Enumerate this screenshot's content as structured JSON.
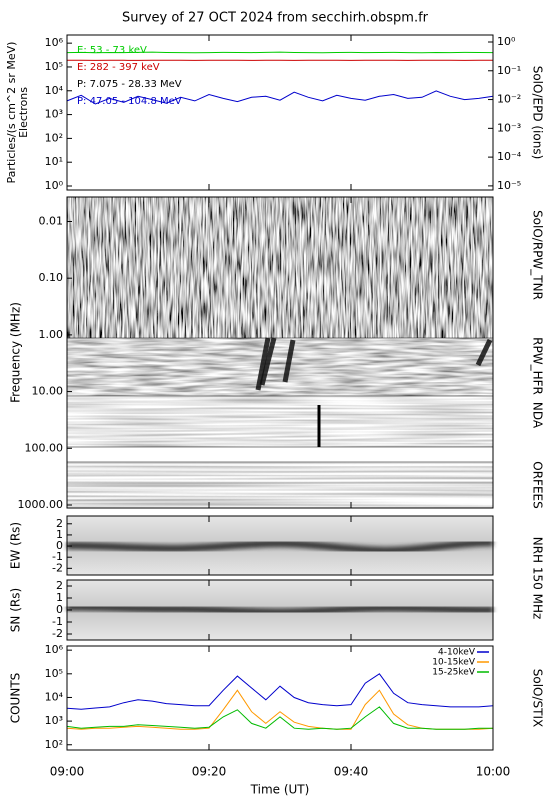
{
  "title": "Survey of 27 OCT 2024 from secchirh.obspm.fr",
  "chart_data": [
    {
      "type": "line",
      "ylabel": [
        "Particles/(s cm^2 sr MeV)",
        "Electrons"
      ],
      "right_label": "SolO/EPD (ions)",
      "log_y": true,
      "xlim": [
        "09:00",
        "10:00"
      ],
      "x": [
        "09:00",
        "09:02",
        "09:04",
        "09:06",
        "09:08",
        "09:10",
        "09:12",
        "09:14",
        "09:16",
        "09:18",
        "09:20",
        "09:22",
        "09:24",
        "09:26",
        "09:28",
        "09:30",
        "09:32",
        "09:34",
        "09:36",
        "09:38",
        "09:40",
        "09:42",
        "09:44",
        "09:46",
        "09:48",
        "09:50",
        "09:52",
        "09:54",
        "09:56",
        "09:58",
        "10:00"
      ],
      "ylim": [
        0.68,
        2200000
      ],
      "yticks": [
        {
          "value": 1,
          "label": "10⁰"
        },
        {
          "value": 10,
          "label": "10¹"
        },
        {
          "value": 100,
          "label": "10²"
        },
        {
          "value": 1000,
          "label": "10³"
        },
        {
          "value": 10000,
          "label": "10⁴"
        },
        {
          "value": 100000,
          "label": "10⁵"
        },
        {
          "value": 1000000,
          "label": "10⁶"
        }
      ],
      "y2lim": [
        7.2e-06,
        1.75
      ],
      "y2ticks": [
        {
          "value": 1e-05,
          "label": "10⁻⁵"
        },
        {
          "value": 0.0001,
          "label": "10⁻⁴"
        },
        {
          "value": 0.001,
          "label": "10⁻³"
        },
        {
          "value": 0.01,
          "label": "10⁻²"
        },
        {
          "value": 0.1,
          "label": "10⁻¹"
        },
        {
          "value": 1,
          "label": "10⁰"
        }
      ],
      "series": [
        {
          "name": "E: 53 - 73 keV",
          "color": "#00cc00",
          "values": [
            400000,
            410000,
            395000,
            405000,
            400000,
            410000,
            420000,
            405000,
            400000,
            395000,
            400000,
            410000,
            405000,
            400000,
            410000,
            420000,
            405000,
            400000,
            395000,
            405000,
            410000,
            400000,
            405000,
            410000,
            400000,
            395000,
            405000,
            400000,
            410000,
            405000,
            400000
          ]
        },
        {
          "name": "E: 282 - 397 keV",
          "color": "#cc0000",
          "values": [
            190000,
            192000,
            188000,
            190000,
            191000,
            189000,
            190000,
            193000,
            190000,
            188000,
            190000,
            191000,
            190000,
            189000,
            192000,
            190000,
            188000,
            190000,
            191000,
            190000,
            189000,
            190000,
            192000,
            190000,
            188000,
            190000,
            191000,
            190000,
            189000,
            190000,
            190000
          ]
        },
        {
          "name": "P: 7.075 - 28.33 MeV",
          "color": "#000000",
          "axis": "y2",
          "values": [
            null,
            null,
            null,
            null,
            null,
            null,
            null,
            null,
            null,
            null,
            null,
            null,
            null,
            null,
            null,
            null,
            null,
            null,
            null,
            null,
            null,
            null,
            null,
            null,
            null,
            null,
            null,
            null,
            null,
            null,
            null
          ]
        },
        {
          "name": "P: 47.05 - 104.8 MeV",
          "color": "#0000cc",
          "axis": "y2",
          "values": [
            0.009,
            0.014,
            0.007,
            0.011,
            0.008,
            0.013,
            0.01,
            0.0075,
            0.012,
            0.009,
            0.015,
            0.011,
            0.0085,
            0.012,
            0.013,
            0.0095,
            0.018,
            0.012,
            0.009,
            0.014,
            0.011,
            0.0095,
            0.013,
            0.015,
            0.011,
            0.012,
            0.02,
            0.013,
            0.01,
            0.011,
            0.013
          ]
        }
      ]
    },
    {
      "type": "spectrogram",
      "ylabel": "Frequency (MHz)",
      "log_y": true,
      "ylim": [
        1130,
        0.0037
      ],
      "yticks": [
        0.01,
        {
          "value": 0.1,
          "label": "0.10"
        },
        {
          "value": 1,
          "label": "1.00"
        },
        {
          "value": 10,
          "label": "10.00"
        },
        {
          "value": 100,
          "label": "100.00"
        },
        {
          "value": 1000,
          "label": "1000.00"
        }
      ],
      "bands": [
        "SolO/RPW_TNR",
        "RPW_HFR",
        "NDA",
        "ORFEES"
      ]
    },
    {
      "type": "image",
      "ylabel": "EW (Rs)",
      "right_label": "NRH 150 MHz",
      "ylim": [
        -2.6,
        2.7
      ],
      "yticks": [
        -2,
        -1,
        0,
        1,
        2
      ]
    },
    {
      "type": "image",
      "ylabel": "SN (Rs)",
      "ylim": [
        -2.5,
        2.5
      ],
      "yticks": [
        -2,
        -1,
        0,
        1,
        2
      ]
    },
    {
      "type": "line",
      "ylabel": "COUNTS",
      "right_label": "SolO/STIX",
      "log_y": true,
      "xlabel": "Time (UT)",
      "xlim": [
        "09:00",
        "10:00"
      ],
      "xticks": [
        "09:00",
        "09:20",
        "09:40",
        "10:00"
      ],
      "x": [
        "09:00",
        "09:02",
        "09:04",
        "09:06",
        "09:08",
        "09:10",
        "09:12",
        "09:14",
        "09:16",
        "09:18",
        "09:20",
        "09:22",
        "09:24",
        "09:26",
        "09:28",
        "09:30",
        "09:32",
        "09:34",
        "09:36",
        "09:38",
        "09:40",
        "09:42",
        "09:44",
        "09:46",
        "09:48",
        "09:50",
        "09:52",
        "09:54",
        "09:56",
        "09:58",
        "10:00"
      ],
      "ylim": [
        60,
        1500000
      ],
      "yticks": [
        {
          "value": 100,
          "label": "10²"
        },
        {
          "value": 1000,
          "label": "10³"
        },
        {
          "value": 10000,
          "label": "10⁴"
        },
        {
          "value": 100000,
          "label": "10⁵"
        },
        {
          "value": 1000000,
          "label": "10⁶"
        }
      ],
      "legend": "upper right",
      "series": [
        {
          "name": "4-10keV",
          "color": "#0000cc",
          "values": [
            3500,
            3200,
            3600,
            4000,
            6000,
            8000,
            7000,
            5500,
            5000,
            4500,
            4500,
            20000,
            80000,
            25000,
            8000,
            30000,
            10000,
            6000,
            5000,
            4500,
            5000,
            40000,
            100000,
            15000,
            6000,
            5000,
            4500,
            4000,
            4000,
            4000,
            4500
          ]
        },
        {
          "name": "10-15keV",
          "color": "#ff9900",
          "values": [
            500,
            450,
            500,
            500,
            550,
            600,
            550,
            500,
            450,
            450,
            500,
            3000,
            20000,
            2500,
            800,
            2500,
            900,
            600,
            500,
            450,
            450,
            5000,
            20000,
            2000,
            700,
            500,
            450,
            450,
            450,
            450,
            500
          ]
        },
        {
          "name": "15-25keV",
          "color": "#00bb00",
          "values": [
            600,
            500,
            550,
            600,
            600,
            700,
            650,
            600,
            550,
            500,
            550,
            1500,
            3000,
            800,
            500,
            1500,
            500,
            450,
            500,
            450,
            500,
            1500,
            4000,
            800,
            500,
            500,
            450,
            450,
            450,
            500,
            500
          ]
        }
      ]
    }
  ]
}
